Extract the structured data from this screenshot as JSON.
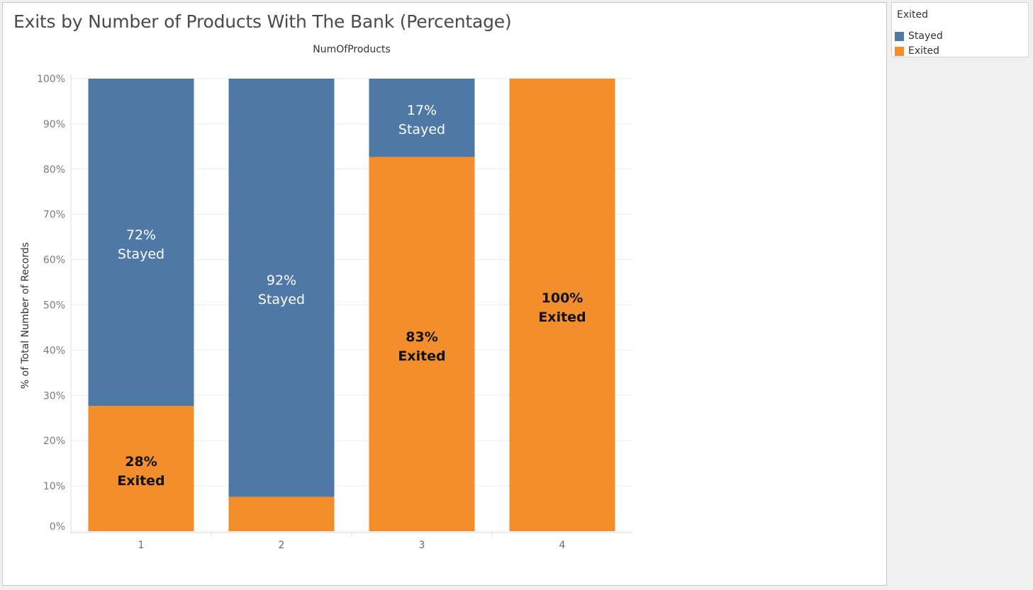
{
  "title": "Exits by Number of Products With The Bank (Percentage)",
  "legend": {
    "title": "Exited",
    "items": [
      {
        "label": "Stayed",
        "color": "#4e79a7"
      },
      {
        "label": "Exited",
        "color": "#f28e2b"
      }
    ]
  },
  "chart_data": {
    "type": "bar",
    "stacked": true,
    "title": "Exits by Number of Products With The Bank (Percentage)",
    "column_header": "NumOfProducts",
    "xlabel": "",
    "ylabel": "% of Total Number of Records",
    "categories": [
      "1",
      "2",
      "3",
      "4"
    ],
    "ylim": [
      0,
      100
    ],
    "yticks": [
      0,
      10,
      20,
      30,
      40,
      50,
      60,
      70,
      80,
      90,
      100
    ],
    "ytick_labels": [
      "0%",
      "10%",
      "20%",
      "30%",
      "40%",
      "50%",
      "60%",
      "70%",
      "80%",
      "90%",
      "100%"
    ],
    "series": [
      {
        "name": "Exited",
        "color": "#f28e2b",
        "values": [
          27.7,
          7.6,
          82.7,
          100
        ]
      },
      {
        "name": "Stayed",
        "color": "#4e79a7",
        "values": [
          72.3,
          92.4,
          17.3,
          0
        ]
      }
    ],
    "data_labels": [
      {
        "category": "1",
        "series": "Stayed",
        "pct": "72%",
        "text": "Stayed"
      },
      {
        "category": "1",
        "series": "Exited",
        "pct": "28%",
        "text": "Exited"
      },
      {
        "category": "2",
        "series": "Stayed",
        "pct": "92%",
        "text": "Stayed"
      },
      {
        "category": "3",
        "series": "Stayed",
        "pct": "17%",
        "text": "Stayed"
      },
      {
        "category": "3",
        "series": "Exited",
        "pct": "83%",
        "text": "Exited"
      },
      {
        "category": "4",
        "series": "Exited",
        "pct": "100%",
        "text": "Exited"
      }
    ],
    "grid": true,
    "legend_position": "right"
  }
}
